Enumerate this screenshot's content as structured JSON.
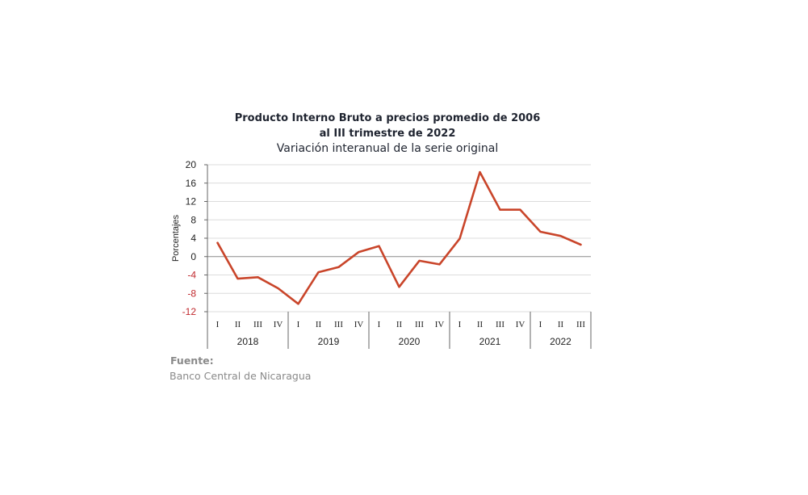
{
  "title_line1": "Producto Interno Bruto a precios promedio de 2006",
  "title_line2": "al III trimestre de 2022",
  "subtitle": "Variación interanual de la serie original",
  "source_label": "Fuente:",
  "source_text": "Banco Central de Nicaragua",
  "colors": {
    "line": "#c9452a",
    "negative_tick": "#c0282d",
    "positive_tick": "#222222",
    "grid": "#dcdcdc",
    "zero_line": "#8c8c8c"
  },
  "chart_data": {
    "type": "line",
    "title": "Producto Interno Bruto a precios promedio de 2006 al III trimestre de 2022",
    "subtitle": "Variación interanual de la serie original",
    "ylabel": "Porcentajes",
    "xlabel": "",
    "ylim": [
      -12,
      20
    ],
    "yticks": [
      20,
      16,
      12,
      8,
      4,
      0,
      -4,
      -8,
      -12
    ],
    "grid": true,
    "legend": "none",
    "quarters": [
      "I",
      "II",
      "III",
      "IV",
      "I",
      "II",
      "III",
      "IV",
      "I",
      "II",
      "III",
      "IV",
      "I",
      "II",
      "III",
      "IV",
      "I",
      "II",
      "III"
    ],
    "years": [
      {
        "label": "2018",
        "count": 4
      },
      {
        "label": "2019",
        "count": 4
      },
      {
        "label": "2020",
        "count": 4
      },
      {
        "label": "2021",
        "count": 4
      },
      {
        "label": "2022",
        "count": 3
      }
    ],
    "series": [
      {
        "values": [
          3.0,
          -4.8,
          -4.5,
          -6.9,
          -10.3,
          -3.4,
          -2.3,
          1.0,
          2.3,
          -6.6,
          -0.9,
          -1.7,
          3.9,
          18.4,
          10.2,
          10.2,
          5.4,
          4.5,
          2.6
        ]
      }
    ]
  }
}
